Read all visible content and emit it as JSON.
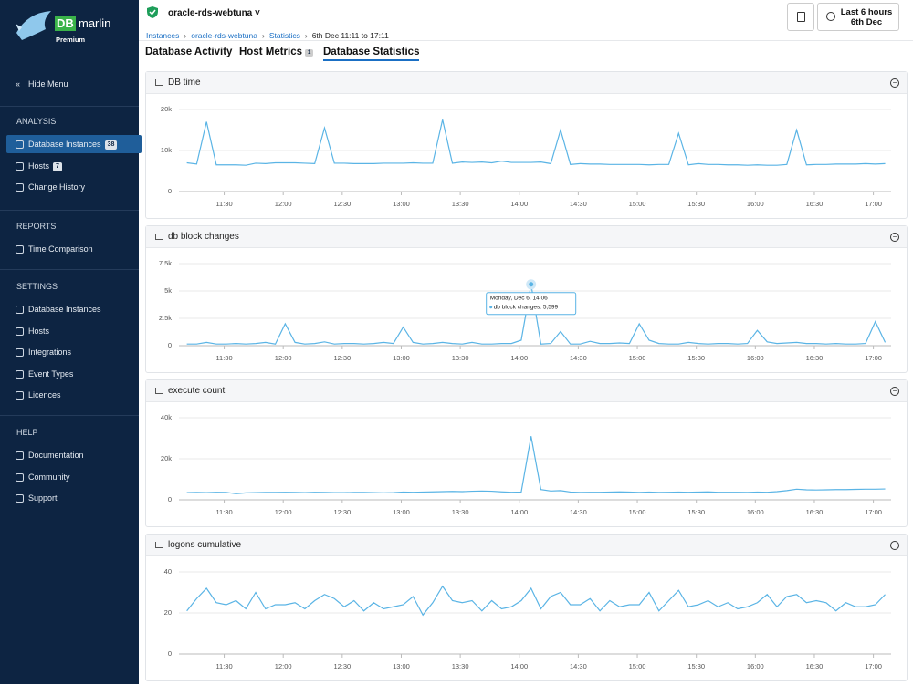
{
  "sidebar": {
    "logo": "DB",
    "logo2": "marlin",
    "tier": "Premium",
    "hide": "Hide Menu",
    "sections": [
      {
        "title": "ANALYSIS",
        "items": [
          {
            "label": "Database Instances",
            "badge": 38
          },
          {
            "label": "Hosts",
            "badge": 7
          },
          {
            "label": "Change History"
          }
        ]
      },
      {
        "title": "REPORTS",
        "items": [
          {
            "label": "Time Comparison"
          }
        ]
      },
      {
        "title": "SETTINGS",
        "items": [
          {
            "label": "Database Instances"
          },
          {
            "label": "Hosts"
          },
          {
            "label": "Integrations"
          },
          {
            "label": "Event Types"
          },
          {
            "label": "Licences"
          }
        ]
      },
      {
        "title": "HELP",
        "items": [
          {
            "label": "Documentation"
          },
          {
            "label": "Community"
          },
          {
            "label": "Support"
          }
        ]
      }
    ]
  },
  "header": {
    "instance": "oracle-rds-webtuna",
    "breadcrumbs": [
      "Instances",
      "oracle-rds-webtuna",
      "Statistics",
      "6th Dec 11:11 to 17:11"
    ],
    "range": [
      "Last 6 hours",
      "6th Dec"
    ]
  },
  "tabs": [
    {
      "label": "Database Activity"
    },
    {
      "label": "Host Metrics",
      "badge": 1
    },
    {
      "label": "Database Statistics"
    }
  ],
  "chart_data": [
    {
      "type": "line",
      "title": "DB time",
      "color": "#5ab4e5",
      "x": [
        671,
        676,
        681,
        686,
        691,
        696,
        701,
        706,
        711,
        716,
        721,
        726,
        731,
        736,
        741,
        746,
        751,
        756,
        761,
        766,
        771,
        776,
        781,
        786,
        791,
        796,
        801,
        806,
        811,
        816,
        821,
        826,
        831,
        836,
        841,
        846,
        851,
        856,
        861,
        866,
        871,
        876,
        881,
        886,
        891,
        896,
        901,
        906,
        911,
        916,
        921,
        926,
        931,
        936,
        941,
        946,
        951,
        956,
        961,
        966,
        971,
        976,
        981,
        986,
        991,
        996,
        1001,
        1006,
        1011,
        1016,
        1021,
        1026
      ],
      "values": [
        7000,
        6700,
        17000,
        6500,
        6500,
        6500,
        6400,
        6900,
        6800,
        7000,
        7000,
        7000,
        6900,
        6800,
        15500,
        6900,
        6900,
        6800,
        6800,
        6800,
        6900,
        6900,
        6900,
        7000,
        6900,
        6900,
        17500,
        6900,
        7200,
        7100,
        7200,
        7000,
        7400,
        7100,
        7100,
        7100,
        7200,
        6800,
        15000,
        6600,
        6800,
        6700,
        6700,
        6600,
        6600,
        6600,
        6600,
        6500,
        6600,
        6600,
        14200,
        6500,
        6800,
        6600,
        6600,
        6500,
        6500,
        6400,
        6500,
        6400,
        6400,
        6600,
        15000,
        6500,
        6600,
        6600,
        6700,
        6700,
        6700,
        6800,
        6700,
        6800
      ],
      "xlim": [
        667,
        1029
      ],
      "xticks": [
        {
          "value": 690,
          "label": "11:30"
        },
        {
          "value": 720,
          "label": "12:00"
        },
        {
          "value": 750,
          "label": "12:30"
        },
        {
          "value": 780,
          "label": "13:00"
        },
        {
          "value": 810,
          "label": "13:30"
        },
        {
          "value": 840,
          "label": "14:00"
        },
        {
          "value": 870,
          "label": "14:30"
        },
        {
          "value": 900,
          "label": "15:00"
        },
        {
          "value": 930,
          "label": "15:30"
        },
        {
          "value": 960,
          "label": "16:00"
        },
        {
          "value": 990,
          "label": "16:30"
        },
        {
          "value": 1020,
          "label": "17:00"
        }
      ],
      "ylim": [
        0,
        20000
      ],
      "yticks": [
        0,
        {
          "value": 10000,
          "label": "10k"
        },
        {
          "value": 20000,
          "label": "20k"
        }
      ],
      "grid": true
    },
    {
      "type": "line",
      "title": "db block changes",
      "color": "#5ab4e5",
      "x": [
        671,
        676,
        681,
        686,
        691,
        696,
        701,
        706,
        711,
        716,
        721,
        726,
        731,
        736,
        741,
        746,
        751,
        756,
        761,
        766,
        771,
        776,
        781,
        786,
        791,
        796,
        801,
        806,
        811,
        816,
        821,
        826,
        831,
        836,
        841,
        846,
        851,
        856,
        861,
        866,
        871,
        876,
        881,
        886,
        891,
        896,
        901,
        906,
        911,
        916,
        921,
        926,
        931,
        936,
        941,
        946,
        951,
        956,
        961,
        966,
        971,
        976,
        981,
        986,
        991,
        996,
        1001,
        1006,
        1011,
        1016,
        1021,
        1026
      ],
      "values": [
        150,
        150,
        300,
        150,
        150,
        200,
        150,
        200,
        300,
        150,
        2000,
        300,
        150,
        200,
        350,
        150,
        200,
        200,
        150,
        200,
        300,
        200,
        1700,
        300,
        150,
        200,
        300,
        200,
        150,
        300,
        150,
        150,
        200,
        200,
        500,
        5599,
        150,
        200,
        1300,
        150,
        150,
        400,
        200,
        200,
        250,
        200,
        2000,
        500,
        200,
        150,
        150,
        300,
        200,
        150,
        200,
        200,
        150,
        200,
        1400,
        350,
        200,
        250,
        300,
        200,
        200,
        150,
        200,
        150,
        150,
        200,
        2200,
        300
      ],
      "tooltip": {
        "index": 35,
        "lines": [
          "Monday, Dec 6, 14:06",
          "db block changes: 5,599"
        ]
      },
      "xlim": [
        667,
        1029
      ],
      "xticks": [
        {
          "value": 690,
          "label": "11:30"
        },
        {
          "value": 720,
          "label": "12:00"
        },
        {
          "value": 750,
          "label": "12:30"
        },
        {
          "value": 780,
          "label": "13:00"
        },
        {
          "value": 810,
          "label": "13:30"
        },
        {
          "value": 840,
          "label": "14:00"
        },
        {
          "value": 870,
          "label": "14:30"
        },
        {
          "value": 900,
          "label": "15:00"
        },
        {
          "value": 930,
          "label": "15:30"
        },
        {
          "value": 960,
          "label": "16:00"
        },
        {
          "value": 990,
          "label": "16:30"
        },
        {
          "value": 1020,
          "label": "17:00"
        }
      ],
      "ylim": [
        0,
        7500
      ],
      "yticks": [
        0,
        {
          "value": 2500,
          "label": "2.5k"
        },
        {
          "value": 5000,
          "label": "5k"
        },
        {
          "value": 7500,
          "label": "7.5k"
        }
      ],
      "grid": true
    },
    {
      "type": "line",
      "title": "execute count",
      "color": "#5ab4e5",
      "x": [
        671,
        676,
        681,
        686,
        691,
        696,
        701,
        706,
        711,
        716,
        721,
        726,
        731,
        736,
        741,
        746,
        751,
        756,
        761,
        766,
        771,
        776,
        781,
        786,
        791,
        796,
        801,
        806,
        811,
        816,
        821,
        826,
        831,
        836,
        841,
        846,
        851,
        856,
        861,
        866,
        871,
        876,
        881,
        886,
        891,
        896,
        901,
        906,
        911,
        916,
        921,
        926,
        931,
        936,
        941,
        946,
        951,
        956,
        961,
        966,
        971,
        976,
        981,
        986,
        991,
        996,
        1001,
        1006,
        1011,
        1016,
        1021,
        1026
      ],
      "values": [
        3500,
        3600,
        3500,
        3700,
        3600,
        3000,
        3400,
        3500,
        3600,
        3600,
        3700,
        3600,
        3500,
        3700,
        3600,
        3500,
        3500,
        3600,
        3600,
        3500,
        3400,
        3500,
        3800,
        3700,
        3800,
        3900,
        4000,
        4100,
        4000,
        4200,
        4300,
        4200,
        3900,
        3700,
        3800,
        31000,
        5000,
        4300,
        4500,
        3800,
        3600,
        3700,
        3700,
        3800,
        3900,
        3800,
        3600,
        3800,
        3600,
        3700,
        3800,
        3700,
        3800,
        3900,
        3700,
        3700,
        3700,
        3600,
        3800,
        3700,
        4000,
        4500,
        5200,
        4900,
        4800,
        4900,
        5000,
        5000,
        5100,
        5200,
        5200,
        5300
      ],
      "xlim": [
        667,
        1029
      ],
      "xticks": [
        {
          "value": 690,
          "label": "11:30"
        },
        {
          "value": 720,
          "label": "12:00"
        },
        {
          "value": 750,
          "label": "12:30"
        },
        {
          "value": 780,
          "label": "13:00"
        },
        {
          "value": 810,
          "label": "13:30"
        },
        {
          "value": 840,
          "label": "14:00"
        },
        {
          "value": 870,
          "label": "14:30"
        },
        {
          "value": 900,
          "label": "15:00"
        },
        {
          "value": 930,
          "label": "15:30"
        },
        {
          "value": 960,
          "label": "16:00"
        },
        {
          "value": 990,
          "label": "16:30"
        },
        {
          "value": 1020,
          "label": "17:00"
        }
      ],
      "ylim": [
        0,
        40000
      ],
      "yticks": [
        0,
        {
          "value": 20000,
          "label": "20k"
        },
        {
          "value": 40000,
          "label": "40k"
        }
      ],
      "grid": true
    },
    {
      "type": "line",
      "title": "logons cumulative",
      "color": "#5ab4e5",
      "x": [
        671,
        676,
        681,
        686,
        691,
        696,
        701,
        706,
        711,
        716,
        721,
        726,
        731,
        736,
        741,
        746,
        751,
        756,
        761,
        766,
        771,
        776,
        781,
        786,
        791,
        796,
        801,
        806,
        811,
        816,
        821,
        826,
        831,
        836,
        841,
        846,
        851,
        856,
        861,
        866,
        871,
        876,
        881,
        886,
        891,
        896,
        901,
        906,
        911,
        916,
        921,
        926,
        931,
        936,
        941,
        946,
        951,
        956,
        961,
        966,
        971,
        976,
        981,
        986,
        991,
        996,
        1001,
        1006,
        1011,
        1016,
        1021,
        1026
      ],
      "values": [
        21,
        27,
        32,
        25,
        24,
        26,
        22,
        30,
        22,
        24,
        24,
        25,
        22,
        26,
        29,
        27,
        23,
        26,
        21,
        25,
        22,
        23,
        24,
        28,
        19,
        25,
        33,
        26,
        25,
        26,
        21,
        26,
        22,
        23,
        26,
        32,
        22,
        28,
        30,
        24,
        24,
        27,
        21,
        26,
        23,
        24,
        24,
        30,
        21,
        26,
        31,
        23,
        24,
        26,
        23,
        25,
        22,
        23,
        25,
        29,
        23,
        28,
        29,
        25,
        26,
        25,
        21,
        25,
        23,
        23,
        24,
        29
      ],
      "xlim": [
        667,
        1029
      ],
      "xticks": [
        {
          "value": 690,
          "label": "11:30"
        },
        {
          "value": 720,
          "label": "12:00"
        },
        {
          "value": 750,
          "label": "12:30"
        },
        {
          "value": 780,
          "label": "13:00"
        },
        {
          "value": 810,
          "label": "13:30"
        },
        {
          "value": 840,
          "label": "14:00"
        },
        {
          "value": 870,
          "label": "14:30"
        },
        {
          "value": 900,
          "label": "15:00"
        },
        {
          "value": 930,
          "label": "15:30"
        },
        {
          "value": 960,
          "label": "16:00"
        },
        {
          "value": 990,
          "label": "16:30"
        },
        {
          "value": 1020,
          "label": "17:00"
        }
      ],
      "ylim": [
        0,
        40
      ],
      "yticks": [
        0,
        20,
        40
      ],
      "grid": true
    }
  ]
}
